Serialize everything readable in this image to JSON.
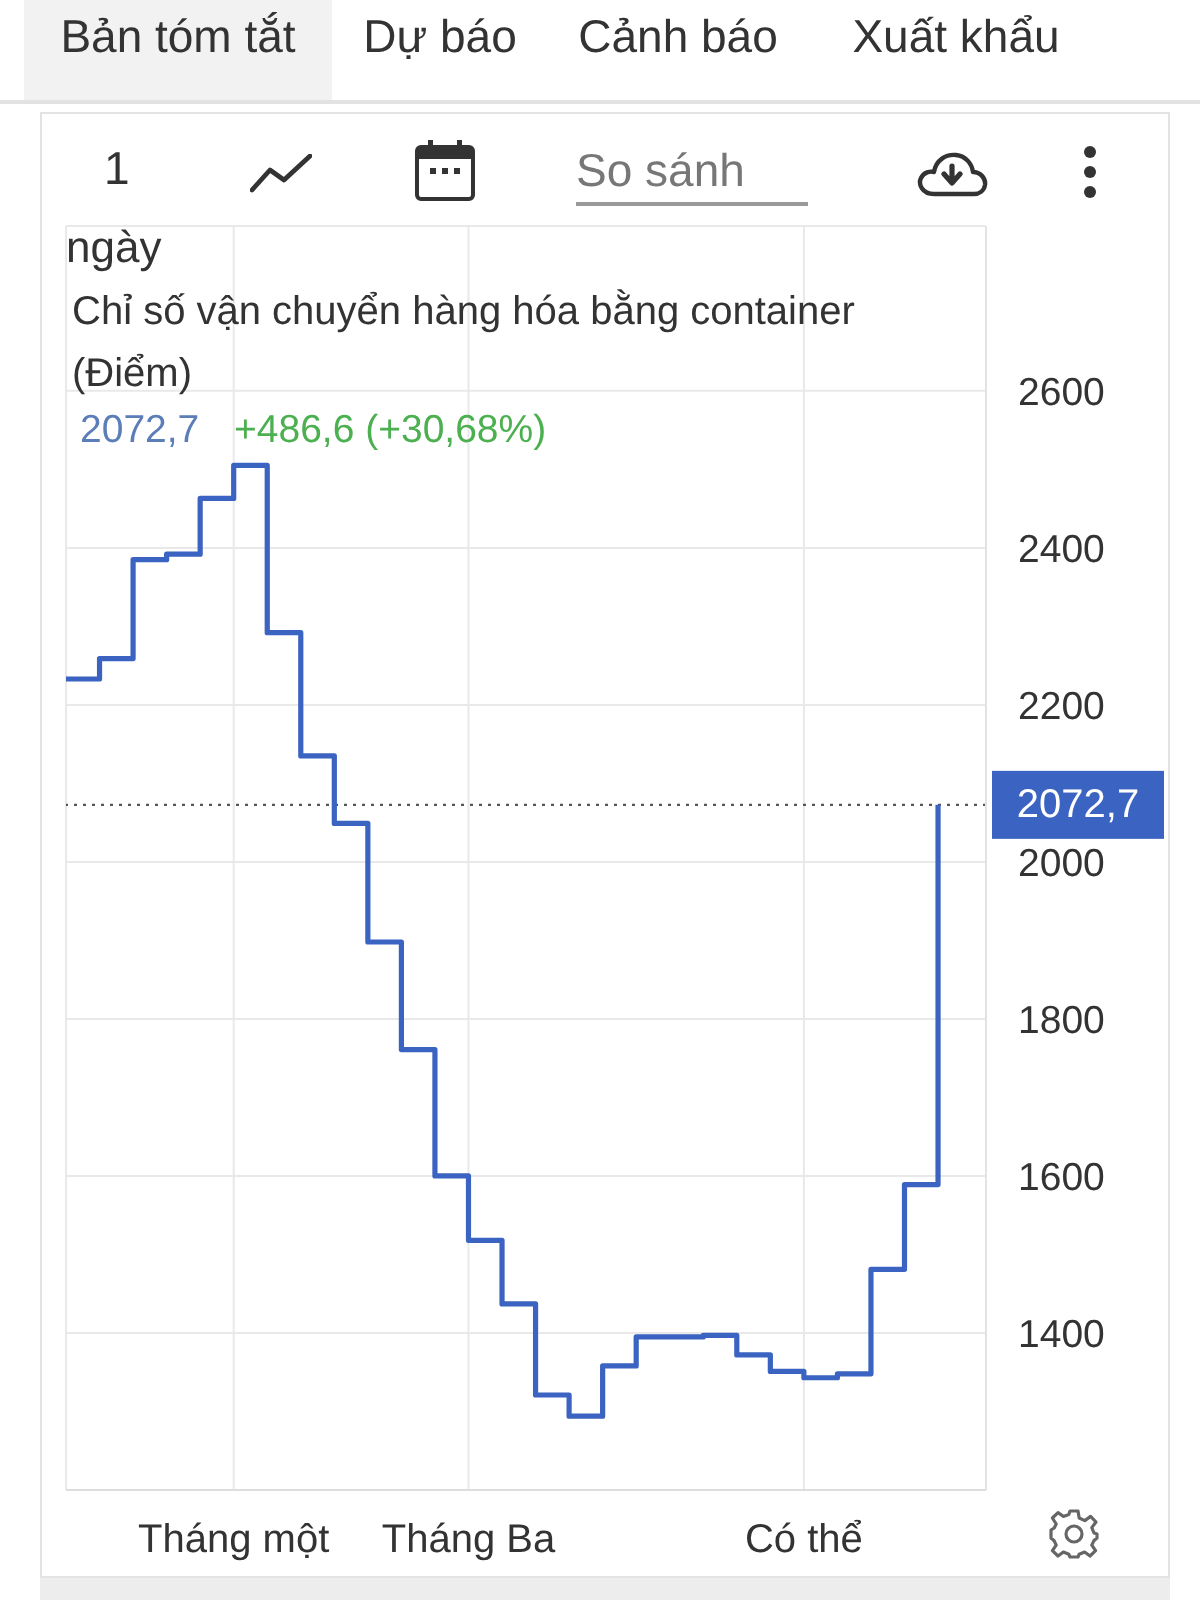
{
  "chart_data": {
    "type": "step",
    "title": "Chỉ số vận chuyển hàng hóa bằng container",
    "subtitle": "(Điểm)",
    "categories": [
      null,
      null,
      null,
      null,
      null,
      "Tháng một",
      null,
      null,
      null,
      null,
      null,
      null,
      "Tháng Ba",
      null,
      null,
      null,
      null,
      null,
      null,
      null,
      null,
      null,
      "Có thể",
      null,
      null,
      null,
      null
    ],
    "values": [
      2233,
      2259,
      2385,
      2392,
      2463,
      2505,
      2292,
      2135,
      2049,
      1898,
      1761,
      1600,
      1518,
      1437,
      1321,
      1294,
      1358,
      1395,
      1395,
      1397,
      1372,
      1351,
      1343,
      1348,
      1481,
      1589,
      2072.7
    ],
    "color": "#3b63c2",
    "marker": "none",
    "line_style": "solid",
    "ylim": [
      1200,
      2810
    ],
    "yticks": [
      1400,
      1600,
      1800,
      2000,
      2200,
      2400,
      2600
    ],
    "grid": true,
    "ref_lines": [
      {
        "axis": "y",
        "value": 2072.7,
        "label": "2072,7",
        "color": "#555555",
        "line_style": "dotted"
      }
    ],
    "annotations": [
      "Bản tóm tắt",
      "Dự báo",
      "Cảnh báo",
      "Xuất khẩu",
      "1",
      "ngày",
      "So sánh",
      "2072,7",
      "+486,6 (+30,68%)"
    ]
  }
}
